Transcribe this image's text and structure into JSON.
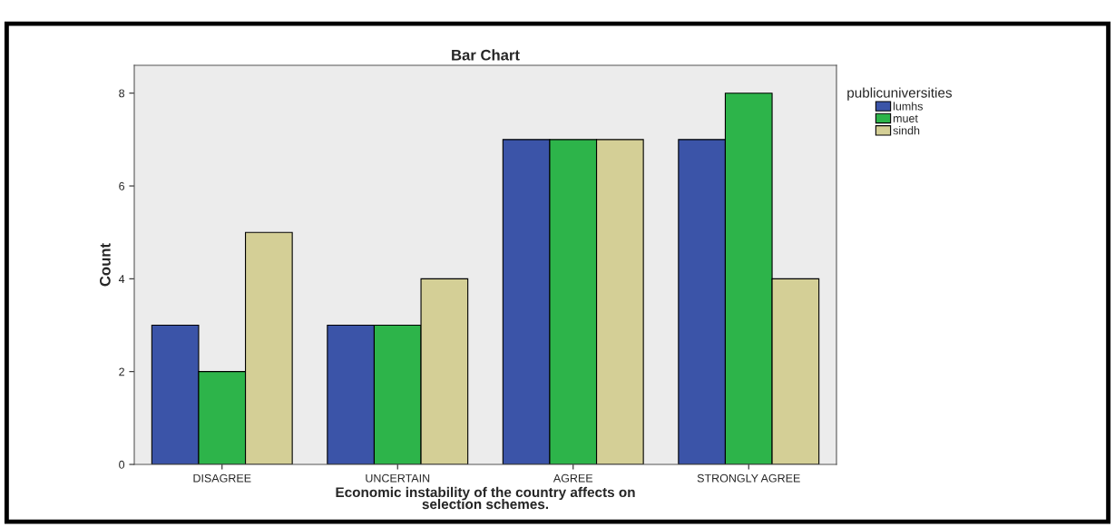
{
  "chart_data": {
    "type": "bar",
    "title": "Bar Chart",
    "xlabel": "Economic instability of the country affects on\nselection schemes.",
    "ylabel": "Count",
    "legend_title": "publicuniversities",
    "categories": [
      "DISAGREE",
      "UNCERTAIN",
      "AGREE",
      "STRONGLY AGREE"
    ],
    "series": [
      {
        "name": "lumhs",
        "color": "#3b54a8",
        "values": [
          3,
          3,
          7,
          7
        ]
      },
      {
        "name": "muet",
        "color": "#2db44a",
        "values": [
          2,
          3,
          7,
          8
        ]
      },
      {
        "name": "sindh",
        "color": "#d4cf96",
        "values": [
          5,
          4,
          7,
          4
        ]
      }
    ],
    "ylim": [
      0,
      8.6
    ],
    "yticks": [
      0,
      2,
      4,
      6,
      8
    ],
    "grid": false,
    "legend": "top right"
  }
}
